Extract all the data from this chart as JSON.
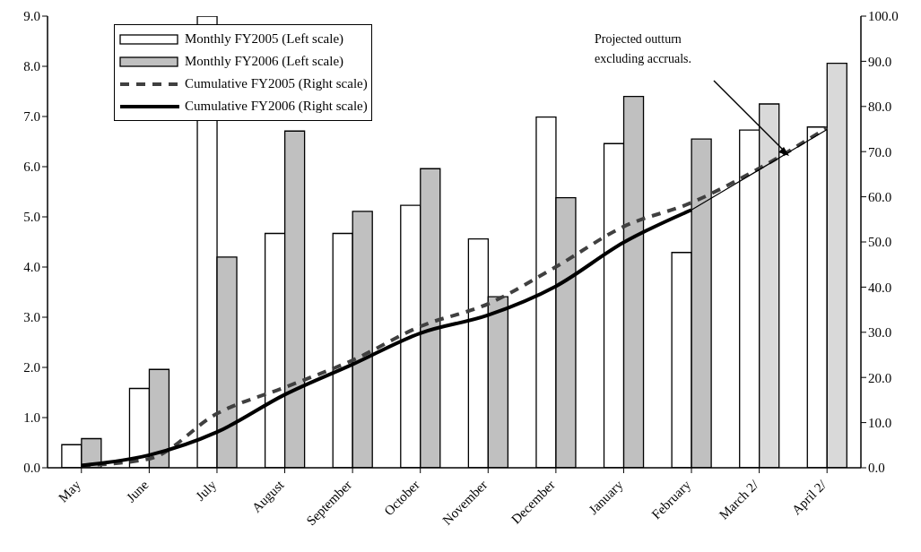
{
  "chart_data": {
    "type": "bar",
    "categories": [
      "May",
      "June",
      "July",
      "August",
      "September",
      "October",
      "November",
      "December",
      "January",
      "February",
      "March 2/",
      "April 2/"
    ],
    "series": [
      {
        "name": "Monthly FY2005 (Left scale)",
        "type": "bar",
        "color": "#ffffff",
        "values": [
          0.46,
          1.58,
          9.0,
          4.67,
          4.67,
          5.23,
          4.56,
          6.99,
          6.46,
          4.29,
          6.73,
          6.79
        ]
      },
      {
        "name": "Monthly FY2006 (Left scale)",
        "type": "bar",
        "color": "#c0c0c0",
        "colors": [
          "#c0c0c0",
          "#c0c0c0",
          "#c0c0c0",
          "#c0c0c0",
          "#c0c0c0",
          "#c0c0c0",
          "#c0c0c0",
          "#c0c0c0",
          "#c0c0c0",
          "#c0c0c0",
          "#d9d9d9",
          "#d9d9d9"
        ],
        "values": [
          0.58,
          1.96,
          4.2,
          6.71,
          5.11,
          5.96,
          3.41,
          5.38,
          7.4,
          6.55,
          7.25,
          8.06
        ]
      },
      {
        "name": "Cumulative FY2005 (Right scale)",
        "type": "line",
        "axis": "y2",
        "line_style": "dashed",
        "color": "#404040",
        "values": [
          0.5,
          2.0,
          12.0,
          17.8,
          23.8,
          31.3,
          36.3,
          44.5,
          53.4,
          58.7,
          66.3,
          75.3
        ]
      },
      {
        "name": "Cumulative FY2006 (Right scale)",
        "type": "line",
        "axis": "y2",
        "line_style": "solid",
        "color": "#000000",
        "values": [
          0.5,
          2.8,
          7.9,
          16.2,
          22.9,
          29.8,
          33.8,
          40.2,
          49.9,
          57.1,
          null,
          null
        ]
      },
      {
        "type": "line",
        "axis": "y2",
        "line_style": "solid",
        "color": "#000000",
        "values": [
          null,
          null,
          null,
          null,
          null,
          null,
          null,
          null,
          null,
          57.1,
          66.0,
          74.9
        ]
      }
    ],
    "ylim": [
      0,
      9
    ],
    "yticks": [
      {
        "value": 0,
        "label": "0.0"
      },
      {
        "value": 1,
        "label": "1.0"
      },
      {
        "value": 2,
        "label": "2.0"
      },
      {
        "value": 3,
        "label": "3.0"
      },
      {
        "value": 4,
        "label": "4.0"
      },
      {
        "value": 5,
        "label": "5.0"
      },
      {
        "value": 6,
        "label": "6.0"
      },
      {
        "value": 7,
        "label": "7.0"
      },
      {
        "value": 8,
        "label": "8.0"
      },
      {
        "value": 9,
        "label": "9.0"
      }
    ],
    "y2lim": [
      0,
      100
    ],
    "y2ticks": [
      {
        "value": 0,
        "label": "0.0"
      },
      {
        "value": 10,
        "label": "10.0"
      },
      {
        "value": 20,
        "label": "20.0"
      },
      {
        "value": 30,
        "label": "30.0"
      },
      {
        "value": 40,
        "label": "40.0"
      },
      {
        "value": 50,
        "label": "50.0"
      },
      {
        "value": 60,
        "label": "60.0"
      },
      {
        "value": 70,
        "label": "70.0"
      },
      {
        "value": 80,
        "label": "80.0"
      },
      {
        "value": 90,
        "label": "90.0"
      },
      {
        "value": 100,
        "label": "100.0"
      }
    ],
    "grid": false,
    "legend": "top left",
    "marker": "none",
    "annotations": [
      "Projected outturn\nexcluding accruals."
    ]
  }
}
